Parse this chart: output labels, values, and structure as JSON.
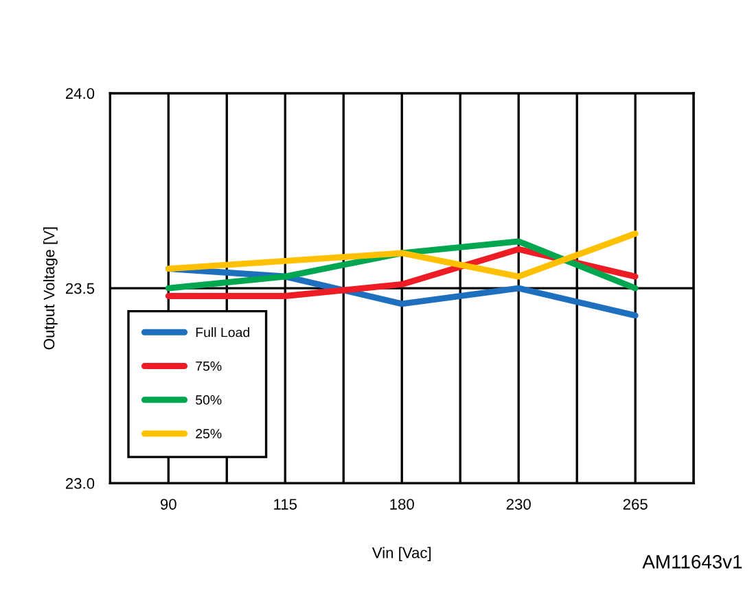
{
  "chart_data": {
    "type": "line",
    "xlabel": "Vin [Vac]",
    "ylabel": "Output Voltage [V]",
    "categories": [
      "90",
      "115",
      "180",
      "230",
      "265"
    ],
    "series": [
      {
        "name": "Full Load",
        "color": "#1f6fbf",
        "values": [
          23.55,
          23.53,
          23.46,
          23.5,
          23.43
        ]
      },
      {
        "name": "75%",
        "color": "#ee1c25",
        "values": [
          23.48,
          23.48,
          23.51,
          23.6,
          23.53
        ]
      },
      {
        "name": "50%",
        "color": "#00a650",
        "values": [
          23.5,
          23.53,
          23.59,
          23.62,
          23.5
        ]
      },
      {
        "name": "25%",
        "color": "#ffc000",
        "values": [
          23.55,
          23.57,
          23.59,
          23.53,
          23.64
        ]
      }
    ],
    "ylim": [
      23.0,
      24.0
    ],
    "yticks": [
      {
        "value": 23.0,
        "label": "23.0"
      },
      {
        "value": 23.5,
        "label": "23.5"
      },
      {
        "value": 24.0,
        "label": "24.0"
      }
    ],
    "grid": true,
    "legend": "bottom left",
    "marker": "none",
    "line_style": "solid",
    "annotations": [
      "AM11643v1"
    ]
  }
}
